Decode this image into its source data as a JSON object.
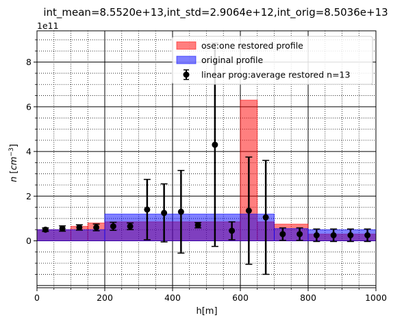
{
  "chart_data": {
    "type": "bar",
    "title": "int_mean=8.5520e+13,int_std=2.9064e+12,int_orig=8.5036e+13",
    "xlabel": "h[m]",
    "ylabel": "n [cm^-3]",
    "ylabel_main": "n ",
    "ylabel_unit": "cm",
    "ylabel_exp": "−3",
    "y_multiplier": "1e11",
    "xlim": [
      0,
      1000
    ],
    "ylim": [
      -2.1,
      9.4
    ],
    "x_ticks": [
      "0",
      "200",
      "400",
      "600",
      "800",
      "1000"
    ],
    "x_tick_values": [
      0,
      200,
      400,
      600,
      800,
      1000
    ],
    "y_ticks": [
      "0",
      "2",
      "4",
      "6",
      "8"
    ],
    "y_tick_values": [
      0,
      2,
      4,
      6,
      8
    ],
    "grid": true,
    "legend_position": "top-right",
    "colors": {
      "restored": "#ff0000",
      "original": "#0000ff",
      "errorbar": "#000000"
    },
    "series": [
      {
        "name": "ose:one restored profile",
        "kind": "bar",
        "bins": [
          [
            0,
            100,
            0.5
          ],
          [
            100,
            150,
            0.65
          ],
          [
            150,
            200,
            0.8
          ],
          [
            200,
            600,
            0.85
          ],
          [
            600,
            650,
            6.3
          ],
          [
            650,
            700,
            0.85
          ],
          [
            700,
            800,
            0.75
          ],
          [
            800,
            1000,
            0.3
          ]
        ]
      },
      {
        "name": "original profile",
        "kind": "bar",
        "bins": [
          [
            0,
            200,
            0.5
          ],
          [
            200,
            700,
            1.2
          ],
          [
            700,
            800,
            0.55
          ],
          [
            800,
            1000,
            0.5
          ]
        ]
      },
      {
        "name": "linear prog:average restored n=13",
        "kind": "errorbar",
        "x": [
          25,
          75,
          125,
          175,
          225,
          275,
          325,
          375,
          425,
          475,
          525,
          575,
          625,
          675,
          725,
          775,
          825,
          875,
          925,
          975
        ],
        "y": [
          0.5,
          0.55,
          0.6,
          0.6,
          0.65,
          0.65,
          1.4,
          1.25,
          1.3,
          0.7,
          4.3,
          0.45,
          1.35,
          1.05,
          0.3,
          0.3,
          0.25,
          0.25,
          0.25,
          0.25
        ],
        "yerr": [
          0.08,
          0.12,
          0.12,
          0.15,
          0.18,
          0.15,
          1.35,
          1.3,
          1.85,
          0.12,
          4.55,
          0.4,
          2.4,
          2.55,
          0.28,
          0.28,
          0.28,
          0.28,
          0.28,
          0.28
        ]
      }
    ]
  }
}
